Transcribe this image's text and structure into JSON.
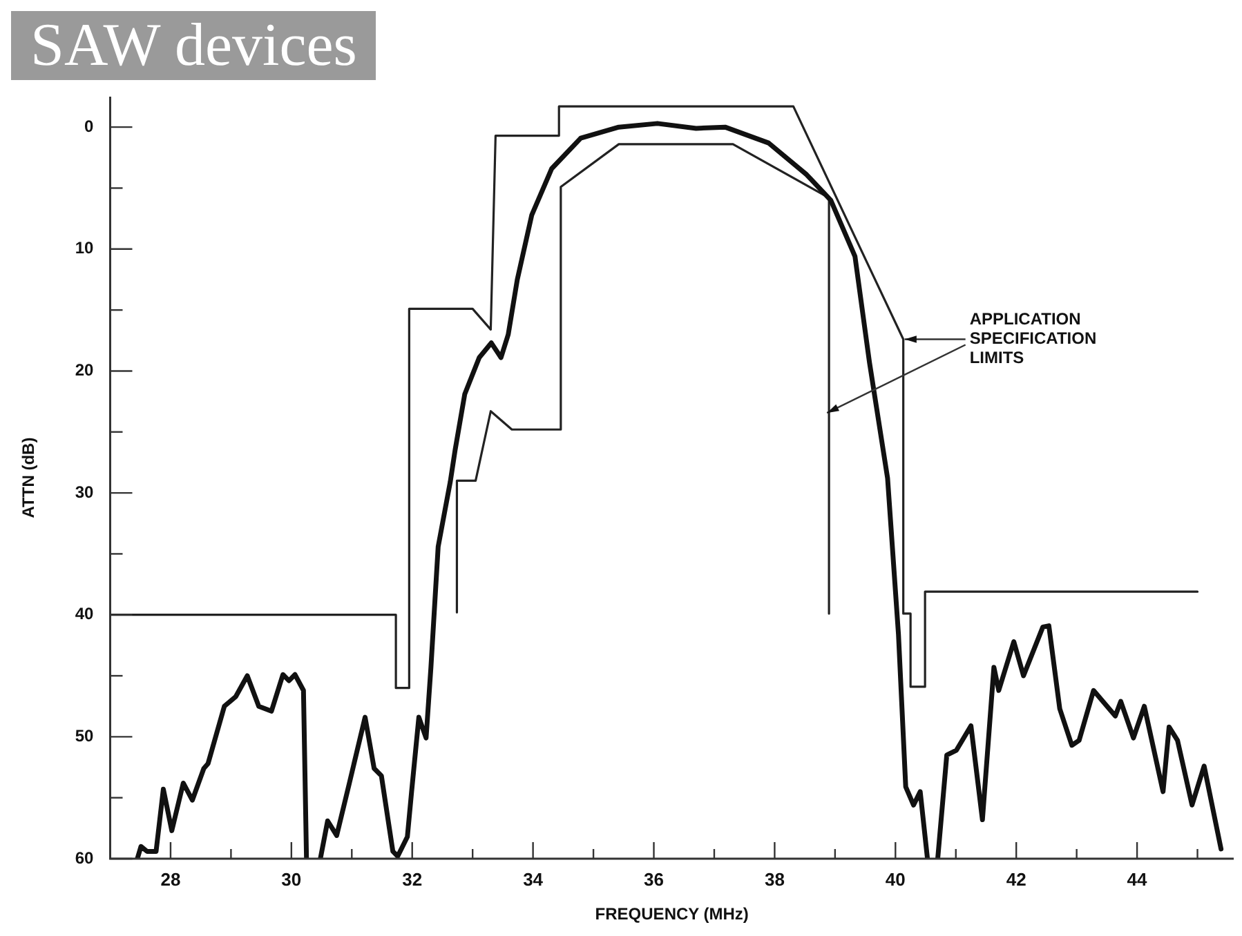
{
  "chart_data": {
    "type": "line",
    "title": "SAW devices",
    "xlabel": "FREQUENCY (MHz)",
    "ylabel": "ATTN (dB)",
    "xlim": [
      27,
      45.6
    ],
    "ylim": [
      60,
      -2.5
    ],
    "xticks": [
      {
        "value": 28,
        "label": "28"
      },
      {
        "value": 29,
        "label": null
      },
      {
        "value": 30,
        "label": "30"
      },
      {
        "value": 31,
        "label": null
      },
      {
        "value": 32,
        "label": "32"
      },
      {
        "value": 33,
        "label": null
      },
      {
        "value": 34,
        "label": "34"
      },
      {
        "value": 35,
        "label": null
      },
      {
        "value": 36,
        "label": "36"
      },
      {
        "value": 37,
        "label": null
      },
      {
        "value": 38,
        "label": "38"
      },
      {
        "value": 39,
        "label": null
      },
      {
        "value": 40,
        "label": "40"
      },
      {
        "value": 41,
        "label": null
      },
      {
        "value": 42,
        "label": "42"
      },
      {
        "value": 43,
        "label": null
      },
      {
        "value": 44,
        "label": "44"
      },
      {
        "value": 45,
        "label": null
      }
    ],
    "yticks": [
      0,
      {
        "value": 5,
        "label": null
      },
      10,
      {
        "value": 15,
        "label": null
      },
      20,
      {
        "value": 25,
        "label": null
      },
      30,
      {
        "value": 35,
        "label": null
      },
      40,
      {
        "value": 45,
        "label": null
      },
      50,
      {
        "value": 55,
        "label": null
      },
      60
    ],
    "grid": false,
    "legend": false,
    "marker": "none",
    "series": [
      {
        "color": "#111111",
        "x": [
          27.45,
          27.51,
          27.61,
          27.76,
          27.88,
          28.02,
          28.21,
          28.36,
          28.55,
          28.62,
          28.89,
          29.08,
          29.27,
          29.46,
          29.67,
          29.86,
          29.96,
          30.06,
          30.2,
          30.25,
          30.36,
          30.48,
          30.6,
          30.75,
          30.96,
          31.22,
          31.37,
          31.49,
          31.68,
          31.76,
          31.92,
          31.99,
          32.11,
          32.23,
          32.31,
          32.43,
          32.63,
          32.71,
          32.87,
          33.11,
          33.31,
          33.47,
          33.59,
          33.74,
          33.98,
          34.31,
          34.79,
          35.42,
          36.06,
          36.7,
          37.18,
          37.9,
          38.53,
          38.93,
          39.33,
          39.57,
          39.87,
          40.05,
          40.17,
          40.3,
          40.41,
          40.53,
          40.62,
          40.7,
          40.85,
          41.01,
          41.25,
          41.44,
          41.63,
          41.71,
          41.96,
          42.12,
          42.44,
          42.54,
          42.72,
          42.92,
          43.04,
          43.28,
          43.64,
          43.73,
          43.94,
          44.12,
          44.43,
          44.53,
          44.67,
          44.91,
          45.11,
          45.39
        ],
        "values": [
          60,
          59,
          59.4,
          59.4,
          54.3,
          57.7,
          53.8,
          55.2,
          52.6,
          52.2,
          47.5,
          46.7,
          45,
          47.5,
          47.9,
          44.9,
          45.4,
          44.9,
          46.2,
          60,
          null,
          60,
          56.9,
          58.1,
          53.8,
          48.4,
          52.6,
          53.2,
          59.4,
          59.8,
          58.2,
          54.5,
          48.4,
          50.1,
          44.3,
          34.4,
          29.1,
          26.5,
          21.9,
          18.9,
          17.7,
          18.9,
          17,
          12.5,
          7.2,
          3.4,
          0.9,
          0,
          -0.3,
          0.1,
          0,
          1.3,
          3.9,
          6,
          10.6,
          19.3,
          28.8,
          41.6,
          54.1,
          55.6,
          54.5,
          60,
          null,
          60,
          51.5,
          51.1,
          49.1,
          56.8,
          44.3,
          46.2,
          42.2,
          45,
          41,
          40.9,
          47.7,
          50.7,
          50.3,
          46.2,
          48.3,
          47.1,
          50.1,
          47.5,
          54.5,
          49.2,
          50.3,
          55.6,
          52.4,
          59.2
        ]
      },
      {
        "color": "#222222",
        "x": [
          27,
          31.73,
          31.73,
          31.95,
          31.95,
          33.0,
          33.3,
          33.38,
          34.43,
          34.43,
          38.31,
          40.13,
          40.13,
          40.25,
          40.25,
          40.49,
          40.49,
          45.0
        ],
        "values": [
          40,
          40,
          46,
          46,
          14.9,
          14.9,
          16.6,
          0.7,
          0.7,
          -1.7,
          -1.7,
          17.4,
          39.9,
          39.9,
          45.9,
          45.9,
          38.1,
          38.1
        ]
      },
      {
        "color": "#222222",
        "x": [
          32.74,
          32.74,
          33.05,
          33.3,
          33.65,
          34.46,
          34.46,
          35.42,
          37.31,
          38.9,
          38.9
        ],
        "values": [
          39.8,
          29,
          29,
          23.3,
          24.8,
          24.8,
          4.9,
          1.4,
          1.4,
          5.8,
          39.9
        ]
      }
    ],
    "annotations": [
      {
        "text": "APPLICATION\nSPECIFICATION\nLIMITS",
        "x": 40.13,
        "y": 17.4
      }
    ]
  }
}
